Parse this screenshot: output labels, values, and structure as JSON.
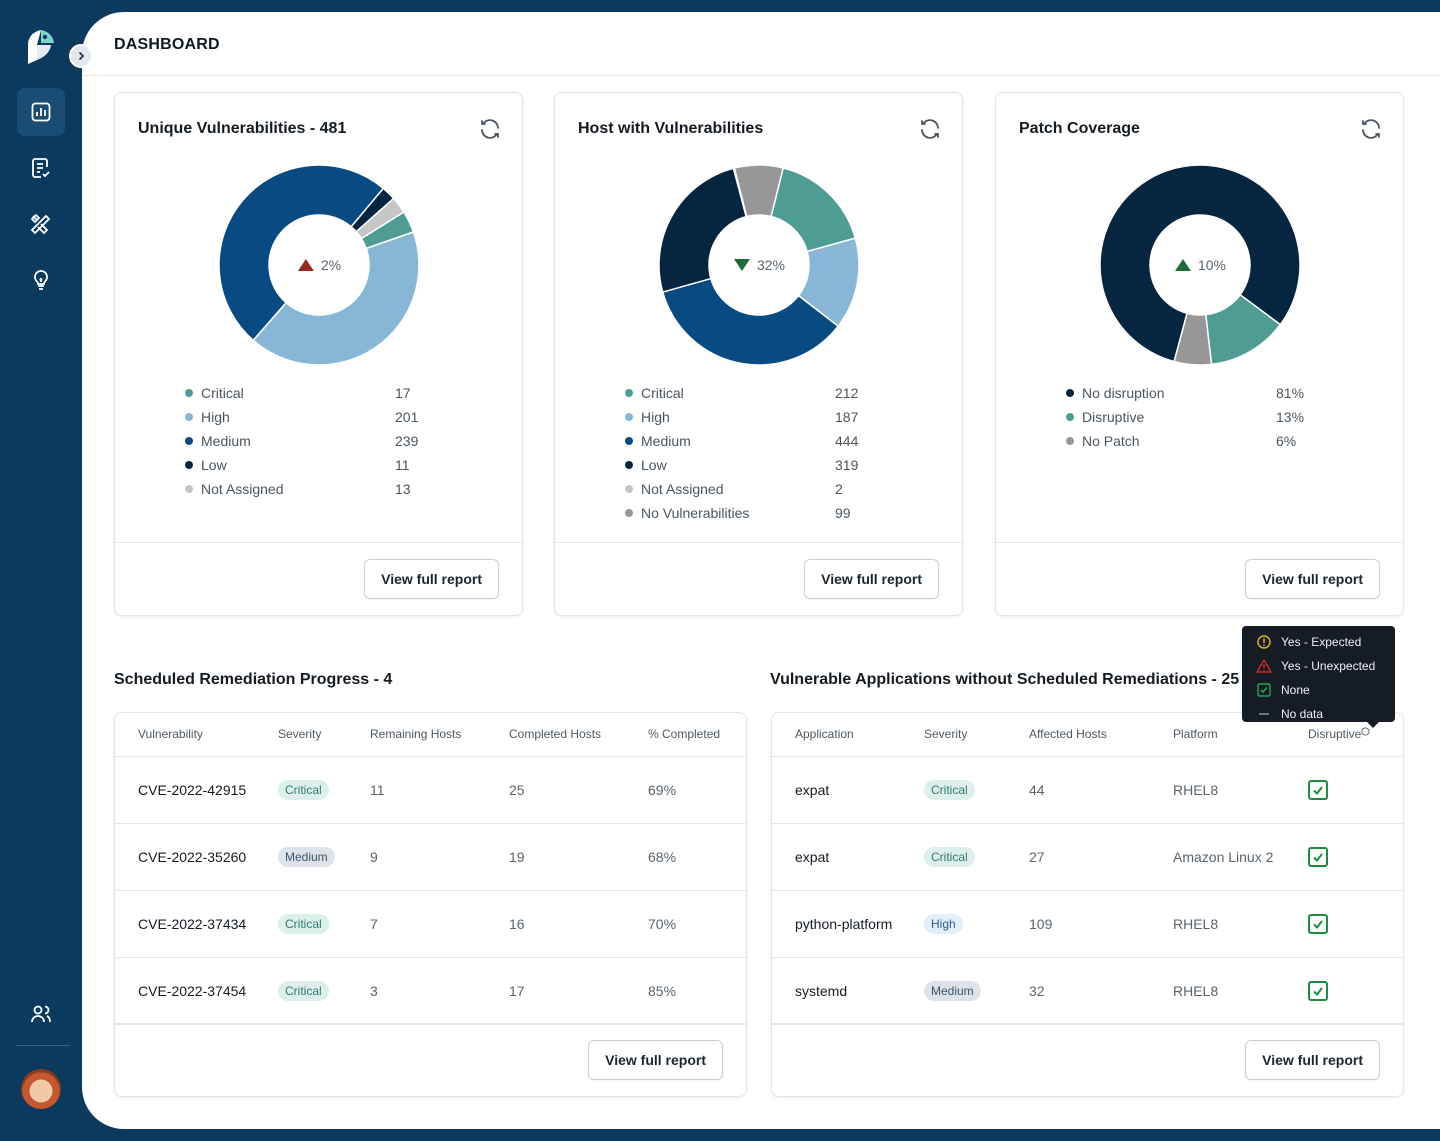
{
  "page": {
    "title": "DASHBOARD"
  },
  "sidebar": {
    "items": [
      {
        "icon": "chart-icon",
        "active": true
      },
      {
        "icon": "checklist-icon",
        "active": false
      },
      {
        "icon": "tools-icon",
        "active": false
      },
      {
        "icon": "lightbulb-icon",
        "active": false
      }
    ],
    "bottom_icon": "users-icon"
  },
  "cards": [
    {
      "title": "Unique Vulnerabilities - 481",
      "center_value": "2%",
      "trend": "up",
      "trend_color": "#9b2a1e",
      "legend": [
        {
          "label": "Critical",
          "value": "17",
          "color": "#4f9c94"
        },
        {
          "label": "High",
          "value": "201",
          "color": "#87b6d6"
        },
        {
          "label": "Medium",
          "value": "239",
          "color": "#084a82"
        },
        {
          "label": "Low",
          "value": "11",
          "color": "#062541"
        },
        {
          "label": "Not Assigned",
          "value": "13",
          "color": "#c6c6c6"
        }
      ],
      "button": "View full report"
    },
    {
      "title": "Host with Vulnerabilities",
      "center_value": "32%",
      "trend": "down",
      "trend_color": "#1f6b3a",
      "legend": [
        {
          "label": "Critical",
          "value": "212",
          "color": "#4f9c94"
        },
        {
          "label": "High",
          "value": "187",
          "color": "#87b6d6"
        },
        {
          "label": "Medium",
          "value": "444",
          "color": "#084a82"
        },
        {
          "label": "Low",
          "value": "319",
          "color": "#062541"
        },
        {
          "label": "Not Assigned",
          "value": "2",
          "color": "#c6c6c6"
        },
        {
          "label": "No Vulnerabilities",
          "value": "99",
          "color": "#979797"
        }
      ],
      "button": "View full report"
    },
    {
      "title": "Patch Coverage",
      "center_value": "10%",
      "trend": "up",
      "trend_color": "#1f6b3a",
      "legend": [
        {
          "label": "No disruption",
          "value": "81%",
          "color": "#062541"
        },
        {
          "label": "Disruptive",
          "value": "13%",
          "color": "#4f9c94"
        },
        {
          "label": "No Patch",
          "value": "6%",
          "color": "#979797"
        }
      ],
      "button": "View full report"
    }
  ],
  "remediation": {
    "title": "Scheduled Remediation Progress - 4",
    "columns": [
      "Vulnerability",
      "Severity",
      "Remaining Hosts",
      "Completed Hosts",
      "% Completed"
    ],
    "rows": [
      {
        "vuln": "CVE-2022-42915",
        "severity": "Critical",
        "remaining": "11",
        "completed": "25",
        "pct": "69%"
      },
      {
        "vuln": "CVE-2022-35260",
        "severity": "Medium",
        "remaining": "9",
        "completed": "19",
        "pct": "68%"
      },
      {
        "vuln": "CVE-2022-37434",
        "severity": "Critical",
        "remaining": "7",
        "completed": "16",
        "pct": "70%"
      },
      {
        "vuln": "CVE-2022-37454",
        "severity": "Critical",
        "remaining": "3",
        "completed": "17",
        "pct": "85%"
      }
    ],
    "button": "View full report"
  },
  "applications": {
    "title": "Vulnerable Applications without Scheduled Remediations - 25",
    "columns": [
      "Application",
      "Severity",
      "Affected Hosts",
      "Platform",
      "Disruptive"
    ],
    "rows": [
      {
        "app": "expat",
        "severity": "Critical",
        "hosts": "44",
        "platform": "RHEL8"
      },
      {
        "app": "expat",
        "severity": "Critical",
        "hosts": "27",
        "platform": "Amazon Linux 2"
      },
      {
        "app": "python-platform",
        "severity": "High",
        "hosts": "109",
        "platform": "RHEL8"
      },
      {
        "app": "systemd",
        "severity": "Medium",
        "hosts": "32",
        "platform": "RHEL8"
      }
    ],
    "button": "View full report"
  },
  "tooltip": {
    "items": [
      {
        "label": "Yes - Expected",
        "icon": "warning-circle-icon",
        "color": "#e2b714"
      },
      {
        "label": "Yes - Unexpected",
        "icon": "warning-triangle-icon",
        "color": "#d7262b"
      },
      {
        "label": "None",
        "icon": "check-box-icon",
        "color": "#2da44e"
      },
      {
        "label": "No data",
        "icon": "dash-icon",
        "color": "#8a939c"
      }
    ]
  },
  "chart_data": [
    {
      "type": "pie",
      "title": "Unique Vulnerabilities - 481",
      "categories": [
        "Critical",
        "High",
        "Medium",
        "Low",
        "Not Assigned"
      ],
      "values": [
        17,
        201,
        239,
        11,
        13
      ]
    },
    {
      "type": "pie",
      "title": "Host with Vulnerabilities",
      "categories": [
        "Critical",
        "High",
        "Medium",
        "Low",
        "Not Assigned",
        "No Vulnerabilities"
      ],
      "values": [
        212,
        187,
        444,
        319,
        2,
        99
      ]
    },
    {
      "type": "pie",
      "title": "Patch Coverage",
      "categories": [
        "No disruption",
        "Disruptive",
        "No Patch"
      ],
      "values": [
        81,
        13,
        6
      ]
    }
  ]
}
